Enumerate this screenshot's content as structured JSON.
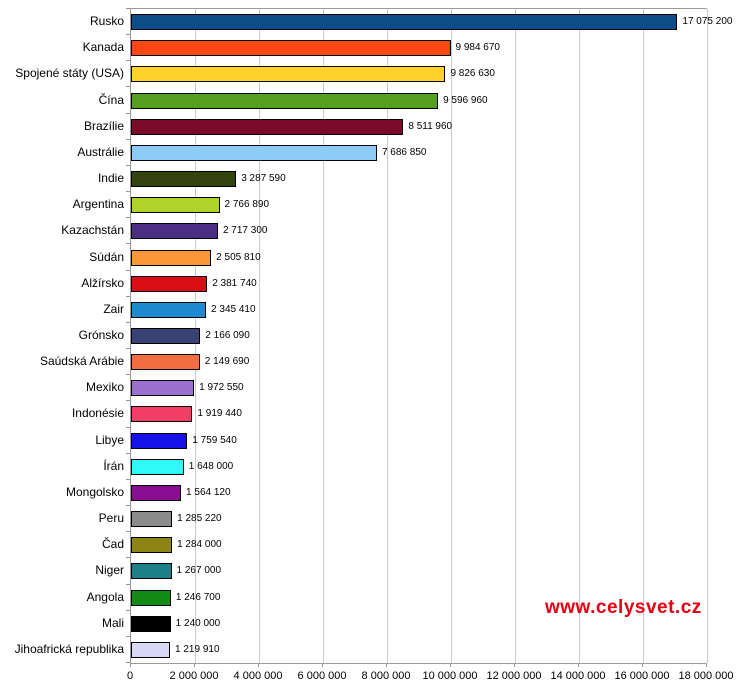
{
  "watermark": {
    "text": "www.celysvet.cz",
    "color": "#e60012"
  },
  "colors": {
    "background": "#ffffff",
    "gridline": "#c8c8c8",
    "axis_border": "#9a9a9a",
    "bar_border": "#000000",
    "label_text": "#000000"
  },
  "chart_data": {
    "type": "bar",
    "orientation": "horizontal",
    "title": "",
    "xlabel": "",
    "ylabel": "",
    "xlim": [
      0,
      18000000
    ],
    "grid": "vertical",
    "legend": "none",
    "categories": [
      "Rusko",
      "Kanada",
      "Spojené státy (USA)",
      "Čína",
      "Brazílie",
      "Austrálie",
      "Indie",
      "Argentina",
      "Kazachstán",
      "Súdán",
      "Alžírsko",
      "Zair",
      "Grónsko",
      "Saúdská Arábie",
      "Mexiko",
      "Indonésie",
      "Libye",
      "Írán",
      "Mongolsko",
      "Peru",
      "Čad",
      "Niger",
      "Angola",
      "Mali",
      "Jihoafrická republika"
    ],
    "values": [
      17075200,
      9984670,
      9826630,
      9596960,
      8511960,
      7686850,
      3287590,
      2766890,
      2717300,
      2505810,
      2381740,
      2345410,
      2166090,
      2149690,
      1972550,
      1919440,
      1759540,
      1648000,
      1564120,
      1285220,
      1284000,
      1267000,
      1246700,
      1240000,
      1219910
    ],
    "value_labels": [
      "17 075 200",
      "9 984 670",
      "9 826 630",
      "9 596 960",
      "8 511 960",
      "7 686 850",
      "3 287 590",
      "2 766 890",
      "2 717 300",
      "2 505 810",
      "2 381 740",
      "2 345 410",
      "2 166 090",
      "2 149 690",
      "1 972 550",
      "1 919 440",
      "1 759 540",
      "1 648 000",
      "1 564 120",
      "1 285 220",
      "1 284 000",
      "1 267 000",
      "1 246 700",
      "1 240 000",
      "1 219 910"
    ],
    "bar_colors": [
      "#0e4c8a",
      "#ff4713",
      "#ffd32b",
      "#55a01e",
      "#7c0a2b",
      "#8dcbf7",
      "#33430f",
      "#afd32b",
      "#4b2d83",
      "#fb9639",
      "#d90f15",
      "#1e8bd1",
      "#3a4273",
      "#f26e3e",
      "#9a6fd0",
      "#f23e66",
      "#1512e8",
      "#2ffafa",
      "#8a0e92",
      "#8c8c8c",
      "#8e8413",
      "#1c8089",
      "#138a13",
      "#000000",
      "#d8d8f6"
    ],
    "x_ticks": {
      "values": [
        0,
        2000000,
        4000000,
        6000000,
        8000000,
        10000000,
        12000000,
        14000000,
        16000000,
        18000000
      ],
      "labels": [
        "0",
        "2 000 000",
        "4 000 000",
        "6 000 000",
        "8 000 000",
        "10 000 000",
        "12 000 000",
        "14 000 000",
        "16 000 000",
        "18 000 000"
      ]
    }
  }
}
